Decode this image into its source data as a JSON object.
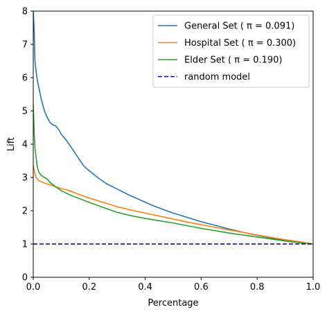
{
  "chart_data": {
    "type": "line",
    "title": "",
    "xlabel": "Percentage",
    "ylabel": "Lift",
    "xlim": [
      0.0,
      1.0
    ],
    "ylim": [
      0,
      8
    ],
    "grid": false,
    "legend_position": "top-right",
    "x_ticks": [
      "0.0",
      "0.2",
      "0.4",
      "0.6",
      "0.8",
      "1.0"
    ],
    "y_ticks": [
      "0",
      "1",
      "2",
      "3",
      "4",
      "5",
      "6",
      "7",
      "8"
    ],
    "series": [
      {
        "name": "General Set ( π = 0.091)",
        "color": "#1f77b4",
        "style": "solid",
        "points": [
          [
            0.0,
            8.0
          ],
          [
            0.003,
            7.5
          ],
          [
            0.006,
            6.5
          ],
          [
            0.01,
            6.2
          ],
          [
            0.015,
            5.9
          ],
          [
            0.02,
            5.7
          ],
          [
            0.03,
            5.3
          ],
          [
            0.04,
            5.0
          ],
          [
            0.05,
            4.8
          ],
          [
            0.06,
            4.65
          ],
          [
            0.07,
            4.58
          ],
          [
            0.08,
            4.55
          ],
          [
            0.09,
            4.45
          ],
          [
            0.1,
            4.3
          ],
          [
            0.12,
            4.1
          ],
          [
            0.14,
            3.85
          ],
          [
            0.16,
            3.6
          ],
          [
            0.18,
            3.35
          ],
          [
            0.2,
            3.2
          ],
          [
            0.23,
            3.0
          ],
          [
            0.26,
            2.82
          ],
          [
            0.3,
            2.65
          ],
          [
            0.34,
            2.48
          ],
          [
            0.38,
            2.33
          ],
          [
            0.42,
            2.18
          ],
          [
            0.46,
            2.05
          ],
          [
            0.5,
            1.93
          ],
          [
            0.55,
            1.8
          ],
          [
            0.6,
            1.67
          ],
          [
            0.65,
            1.56
          ],
          [
            0.7,
            1.45
          ],
          [
            0.75,
            1.35
          ],
          [
            0.8,
            1.26
          ],
          [
            0.85,
            1.18
          ],
          [
            0.9,
            1.11
          ],
          [
            0.95,
            1.05
          ],
          [
            1.0,
            1.0
          ]
        ]
      },
      {
        "name": "Hospital Set ( π = 0.300)",
        "color": "#ff7f0e",
        "style": "solid",
        "points": [
          [
            0.0,
            3.35
          ],
          [
            0.005,
            3.15
          ],
          [
            0.01,
            3.0
          ],
          [
            0.02,
            2.9
          ],
          [
            0.04,
            2.83
          ],
          [
            0.06,
            2.78
          ],
          [
            0.08,
            2.72
          ],
          [
            0.1,
            2.67
          ],
          [
            0.13,
            2.6
          ],
          [
            0.16,
            2.5
          ],
          [
            0.2,
            2.38
          ],
          [
            0.25,
            2.25
          ],
          [
            0.3,
            2.12
          ],
          [
            0.35,
            2.02
          ],
          [
            0.4,
            1.93
          ],
          [
            0.45,
            1.84
          ],
          [
            0.5,
            1.75
          ],
          [
            0.55,
            1.66
          ],
          [
            0.6,
            1.58
          ],
          [
            0.65,
            1.5
          ],
          [
            0.7,
            1.42
          ],
          [
            0.75,
            1.35
          ],
          [
            0.8,
            1.27
          ],
          [
            0.85,
            1.2
          ],
          [
            0.9,
            1.13
          ],
          [
            0.95,
            1.07
          ],
          [
            1.0,
            1.0
          ]
        ]
      },
      {
        "name": "Elder Set ( π = 0.190)",
        "color": "#2ca02c",
        "style": "solid",
        "points": [
          [
            0.0,
            5.2
          ],
          [
            0.003,
            4.4
          ],
          [
            0.006,
            3.9
          ],
          [
            0.01,
            3.6
          ],
          [
            0.015,
            3.3
          ],
          [
            0.02,
            3.15
          ],
          [
            0.03,
            3.05
          ],
          [
            0.04,
            3.0
          ],
          [
            0.05,
            2.95
          ],
          [
            0.06,
            2.85
          ],
          [
            0.08,
            2.72
          ],
          [
            0.1,
            2.6
          ],
          [
            0.13,
            2.48
          ],
          [
            0.16,
            2.38
          ],
          [
            0.2,
            2.25
          ],
          [
            0.25,
            2.1
          ],
          [
            0.3,
            1.95
          ],
          [
            0.35,
            1.85
          ],
          [
            0.4,
            1.77
          ],
          [
            0.45,
            1.7
          ],
          [
            0.5,
            1.63
          ],
          [
            0.55,
            1.55
          ],
          [
            0.6,
            1.47
          ],
          [
            0.65,
            1.4
          ],
          [
            0.7,
            1.33
          ],
          [
            0.75,
            1.27
          ],
          [
            0.8,
            1.21
          ],
          [
            0.85,
            1.15
          ],
          [
            0.9,
            1.09
          ],
          [
            0.95,
            1.04
          ],
          [
            1.0,
            1.0
          ]
        ]
      },
      {
        "name": "random model",
        "color": "#000080",
        "style": "dashed",
        "points": [
          [
            0.0,
            1.0
          ],
          [
            1.0,
            1.0
          ]
        ]
      }
    ]
  }
}
